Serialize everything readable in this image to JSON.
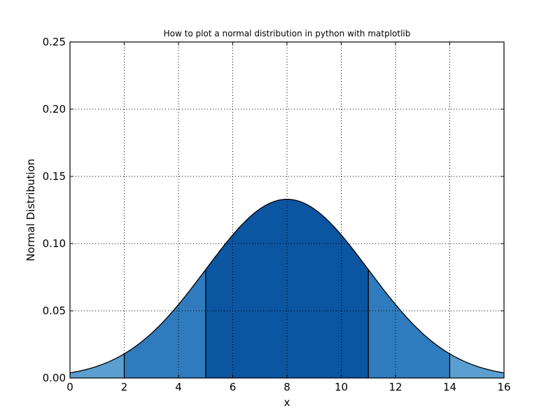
{
  "chart_data": {
    "type": "area",
    "title": "How to plot a normal distribution in python with matplotlib",
    "xlabel": "x",
    "ylabel": "Normal Distribution",
    "xlim": [
      0,
      16
    ],
    "ylim": [
      0,
      0.25
    ],
    "xticks": [
      0,
      2,
      4,
      6,
      8,
      10,
      12,
      14,
      16
    ],
    "xtick_labels": [
      "0",
      "2",
      "4",
      "6",
      "8",
      "10",
      "12",
      "14",
      "16"
    ],
    "yticks": [
      0.0,
      0.05,
      0.1,
      0.15,
      0.2,
      0.25
    ],
    "ytick_labels": [
      "0.00",
      "0.05",
      "0.10",
      "0.15",
      "0.20",
      "0.25"
    ],
    "grid": true,
    "distribution": {
      "mean": 8,
      "std": 3
    },
    "peak_value": 0.133,
    "boundaries": [
      2,
      5,
      11,
      14
    ],
    "boundary_heights": [
      0.018,
      0.081,
      0.081,
      0.018
    ],
    "regions": [
      {
        "from": 0,
        "to": 2,
        "color": "#5a9fd0"
      },
      {
        "from": 2,
        "to": 5,
        "color": "#2f7bbd"
      },
      {
        "from": 5,
        "to": 11,
        "color": "#0b55a1"
      },
      {
        "from": 11,
        "to": 14,
        "color": "#2f7bbd"
      },
      {
        "from": 14,
        "to": 16,
        "color": "#5a9fd0"
      }
    ],
    "curve_color": "#000000"
  }
}
